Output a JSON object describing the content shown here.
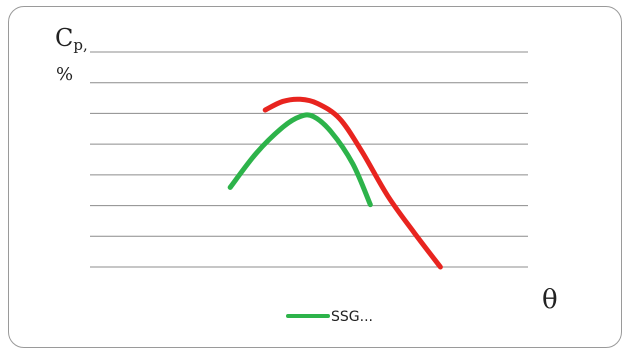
{
  "chart_data": {
    "type": "line",
    "ylabel_main": "C",
    "ylabel_sub": "p",
    "ylabel_tail": ",",
    "ylabel_unit": "%",
    "xlabel": "θ",
    "grid": true,
    "grid_lines": 8,
    "xlim": [
      0,
      100
    ],
    "ylim": [
      0,
      100
    ],
    "legend_position": "bottom-center",
    "series": [
      {
        "name": "SSG...",
        "color": "#2db34a",
        "x": [
          32,
          38,
          44,
          48,
          51,
          55,
          60,
          64
        ],
        "y": [
          37,
          53,
          65,
          70,
          70,
          63,
          48,
          29
        ],
        "in_legend": true
      },
      {
        "name": "",
        "color": "#e8241f",
        "x": [
          40,
          44,
          48,
          52,
          57,
          62,
          68,
          74,
          80
        ],
        "y": [
          73,
          77,
          78,
          76,
          69,
          54,
          33,
          16,
          0
        ],
        "in_legend": false
      }
    ]
  }
}
